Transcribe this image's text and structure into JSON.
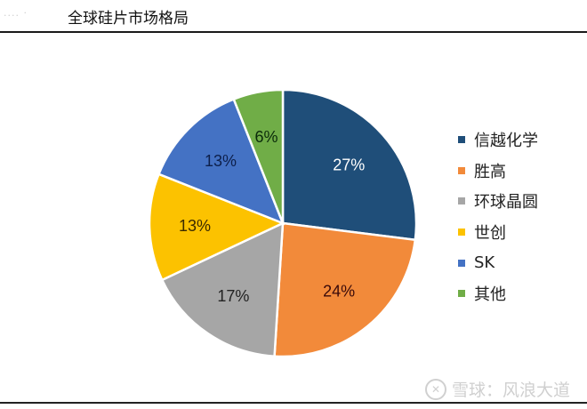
{
  "header": {
    "prefix": "....  ·",
    "title": "全球硅片市场格局"
  },
  "watermark": {
    "logo": "✕",
    "text": "雪球：风浪大道"
  },
  "chart_data": {
    "type": "pie",
    "title": "全球硅片市场格局",
    "categories": [
      "信越化学",
      "胜高",
      "环球晶圆",
      "世创",
      "SK",
      "其他"
    ],
    "values": [
      27,
      24,
      17,
      13,
      13,
      6
    ],
    "labels": [
      "27%",
      "24%",
      "17%",
      "13%",
      "13%",
      "6%"
    ],
    "colors": [
      "#1f4e79",
      "#f28a3a",
      "#a6a6a6",
      "#fcc200",
      "#4472c4",
      "#70ad47"
    ],
    "label_colors": [
      "#ffffff",
      "#3a0a0a",
      "#222222",
      "#3a2a00",
      "#0d1f4a",
      "#0a2a0a"
    ],
    "legend_position": "right",
    "start_angle_deg": 0,
    "direction": "clockwise"
  }
}
